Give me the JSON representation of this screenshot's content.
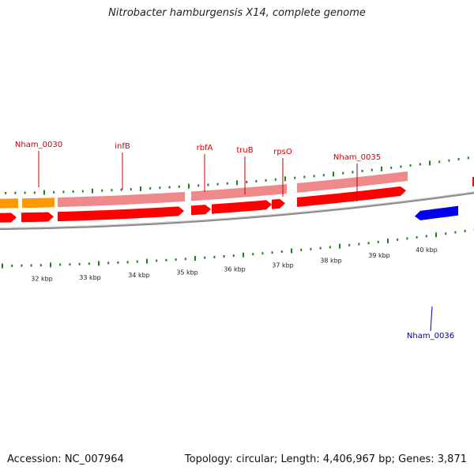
{
  "header": {
    "title": "Nitrobacter hamburgensis X14, complete genome"
  },
  "footer": {
    "accession": "Accession: NC_007964",
    "summary": "Topology: circular; Length: 4,406,967 bp; Genes: 3,871"
  },
  "colors": {
    "background": "#ffffff",
    "backbone": "#8a8a8a",
    "tick": "#1f7f1f",
    "cds_forward": "#ff0000",
    "cds_forward_light": "#f08a8a",
    "cds_orange": "#ff9900",
    "cds_reverse": "#0000ee",
    "label_forward": "#cc0000",
    "label_reverse": "#0000aa"
  },
  "gene_labels": [
    {
      "name": "Nham_0030",
      "strand": "forward"
    },
    {
      "name": "infB",
      "strand": "forward"
    },
    {
      "name": "rbfA",
      "strand": "forward"
    },
    {
      "name": "truB",
      "strand": "forward"
    },
    {
      "name": "rpsO",
      "strand": "forward"
    },
    {
      "name": "Nham_0035",
      "strand": "forward"
    },
    {
      "name": "Nham_0036",
      "strand": "reverse"
    }
  ],
  "scale_labels": [
    "32 kbp",
    "33 kbp",
    "34 kbp",
    "35 kbp",
    "36 kbp",
    "37 kbp",
    "38 kbp",
    "39 kbp",
    "40 kbp"
  ]
}
